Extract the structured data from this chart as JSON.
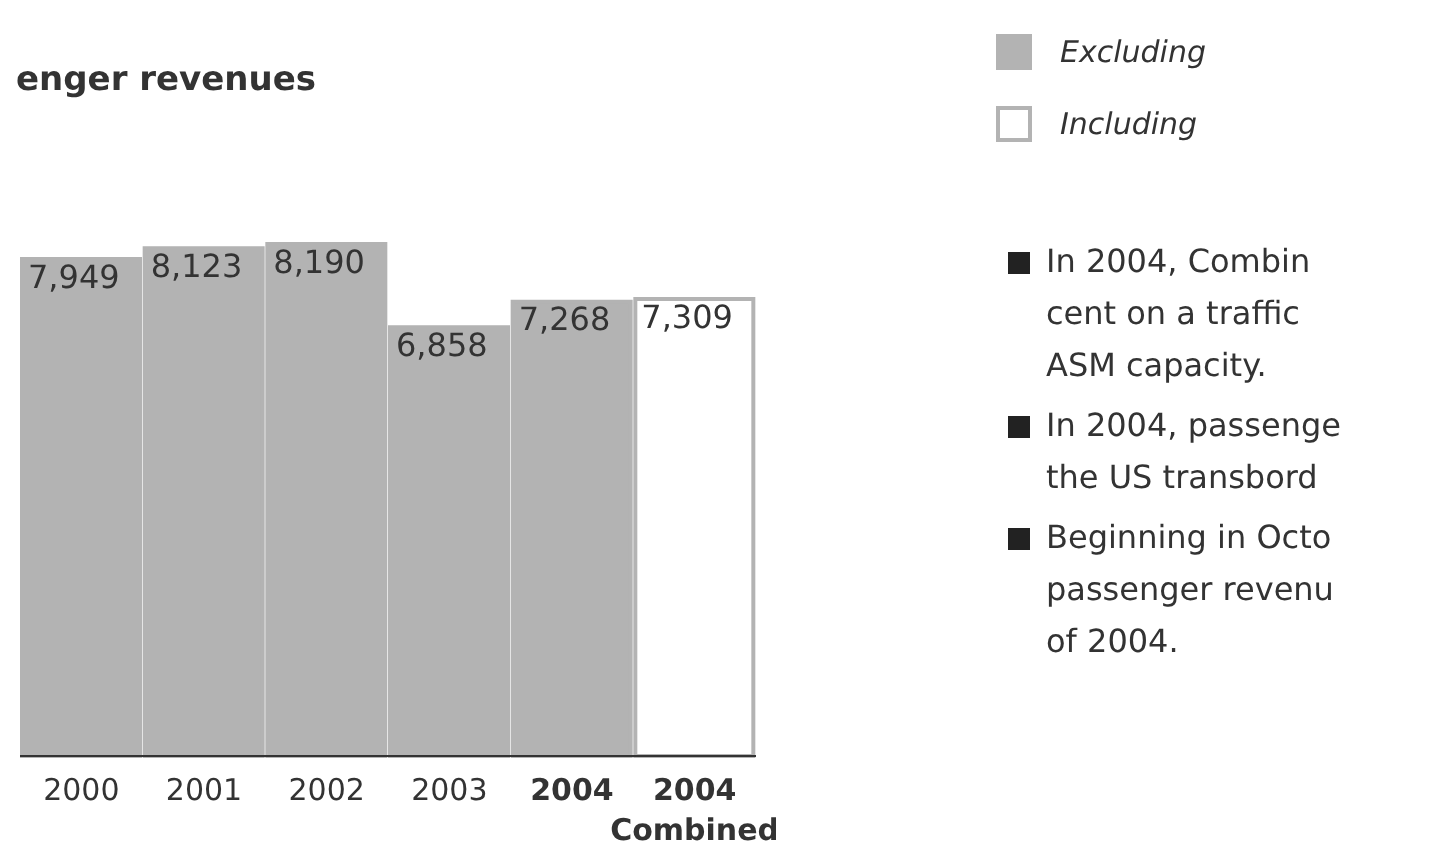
{
  "chart_data": {
    "type": "bar",
    "title": "enger revenues",
    "categories": [
      "2000",
      "2001",
      "2002",
      "2003",
      "2004",
      "2004\nCombined"
    ],
    "series": [
      {
        "name": "Excluding",
        "color": "#b3b3b3",
        "values": [
          7949,
          8123,
          8190,
          6858,
          7268,
          null
        ],
        "value_labels": [
          "7,949",
          "8,123",
          "8,190",
          "6,858",
          "7,268",
          null
        ]
      },
      {
        "name": "Including",
        "color": "#ffffff",
        "values": [
          null,
          null,
          null,
          null,
          null,
          7309
        ],
        "value_labels": [
          null,
          null,
          null,
          null,
          null,
          "7,309"
        ]
      }
    ],
    "stacked": true,
    "legend": "top right",
    "annotations": [
      "In 2004, Combin\ncent on a traffic\nASM capacity.",
      "In 2004, passenge\nthe US transbord",
      "Beginning in Octo\npassenger revenu\nof 2004."
    ]
  }
}
